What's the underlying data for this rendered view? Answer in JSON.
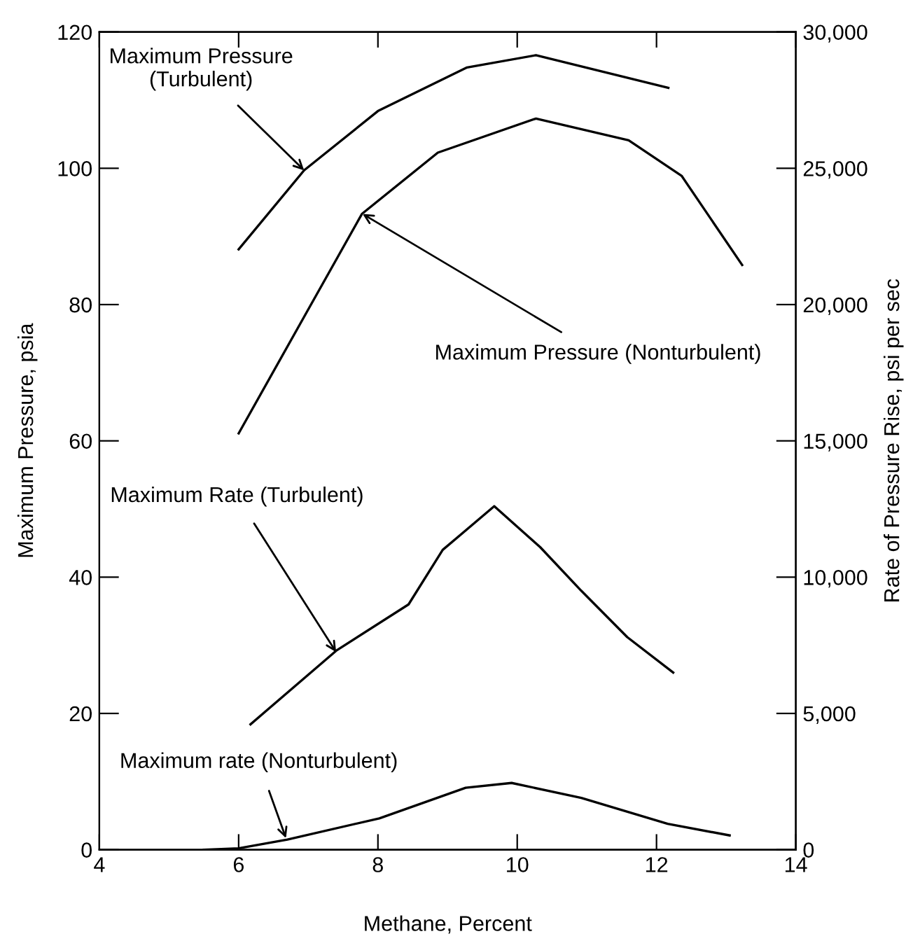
{
  "chart_data": {
    "type": "line",
    "xlabel": "Methane, Percent",
    "ylabel": "Maximum Pressure, psia",
    "y2label": "Rate of Pressure Rise, psi per sec",
    "series": [
      {
        "color": "#000000",
        "x": [
          6,
          6.94,
          8.0,
          9.28,
          10.27,
          12.17
        ],
        "values": [
          88.1,
          99.7,
          108.4,
          114.8,
          116.6,
          111.8
        ]
      },
      {
        "color": "#000000",
        "x": [
          6,
          6.94,
          7.77,
          8.86,
          10.27,
          11.6,
          12.36,
          13.23
        ],
        "values": [
          61.1,
          78.2,
          93.3,
          102.3,
          107.3,
          104.1,
          98.9,
          85.8
        ]
      },
      {
        "color": "#000000",
        "axis": "y2",
        "x": [
          6.17,
          7.4,
          8.44,
          8.93,
          9.67,
          10.33,
          10.92,
          11.58,
          12.24
        ],
        "values": [
          4600,
          7300,
          9000,
          11000,
          12600,
          11100,
          9500,
          7800,
          6500
        ]
      },
      {
        "color": "#000000",
        "axis": "y2",
        "x": [
          5.5,
          6,
          6.7,
          8.02,
          9.26,
          9.92,
          10.92,
          12.16,
          13.05
        ],
        "values": [
          0,
          50,
          375,
          1150,
          2275,
          2450,
          1900,
          950,
          525
        ]
      }
    ],
    "annotations": [
      {
        "text": "Maximum Pressure\n(Turbulent)",
        "x": 6.94,
        "y": 99.7
      },
      {
        "text": "Maximum Pressure (Nonturbulent)",
        "x": 7.78,
        "y": 93.3
      },
      {
        "text": "Maximum Rate (Turbulent)",
        "x": 7.4,
        "y": 29
      },
      {
        "text": "Maximum rate (Nonturbulent)",
        "x": 6.68,
        "y": 1.7
      }
    ],
    "xlim": [
      4,
      14
    ],
    "xticks": [
      4,
      6,
      8,
      10,
      12,
      14
    ],
    "ylim": [
      0,
      120
    ],
    "yticks": [
      0,
      20,
      40,
      60,
      80,
      100,
      120
    ],
    "y2lim": [
      0,
      30000
    ],
    "y2ticks": [
      {
        "value": 0,
        "label": "0"
      },
      {
        "value": 5000,
        "label": "5,000"
      },
      {
        "value": 10000,
        "label": "10,000"
      },
      {
        "value": 15000,
        "label": "15,000"
      },
      {
        "value": 20000,
        "label": "20,000"
      },
      {
        "value": 25000,
        "label": "25,000"
      },
      {
        "value": 30000,
        "label": "30,000"
      }
    ],
    "marker": "none",
    "line_style": "solid"
  }
}
